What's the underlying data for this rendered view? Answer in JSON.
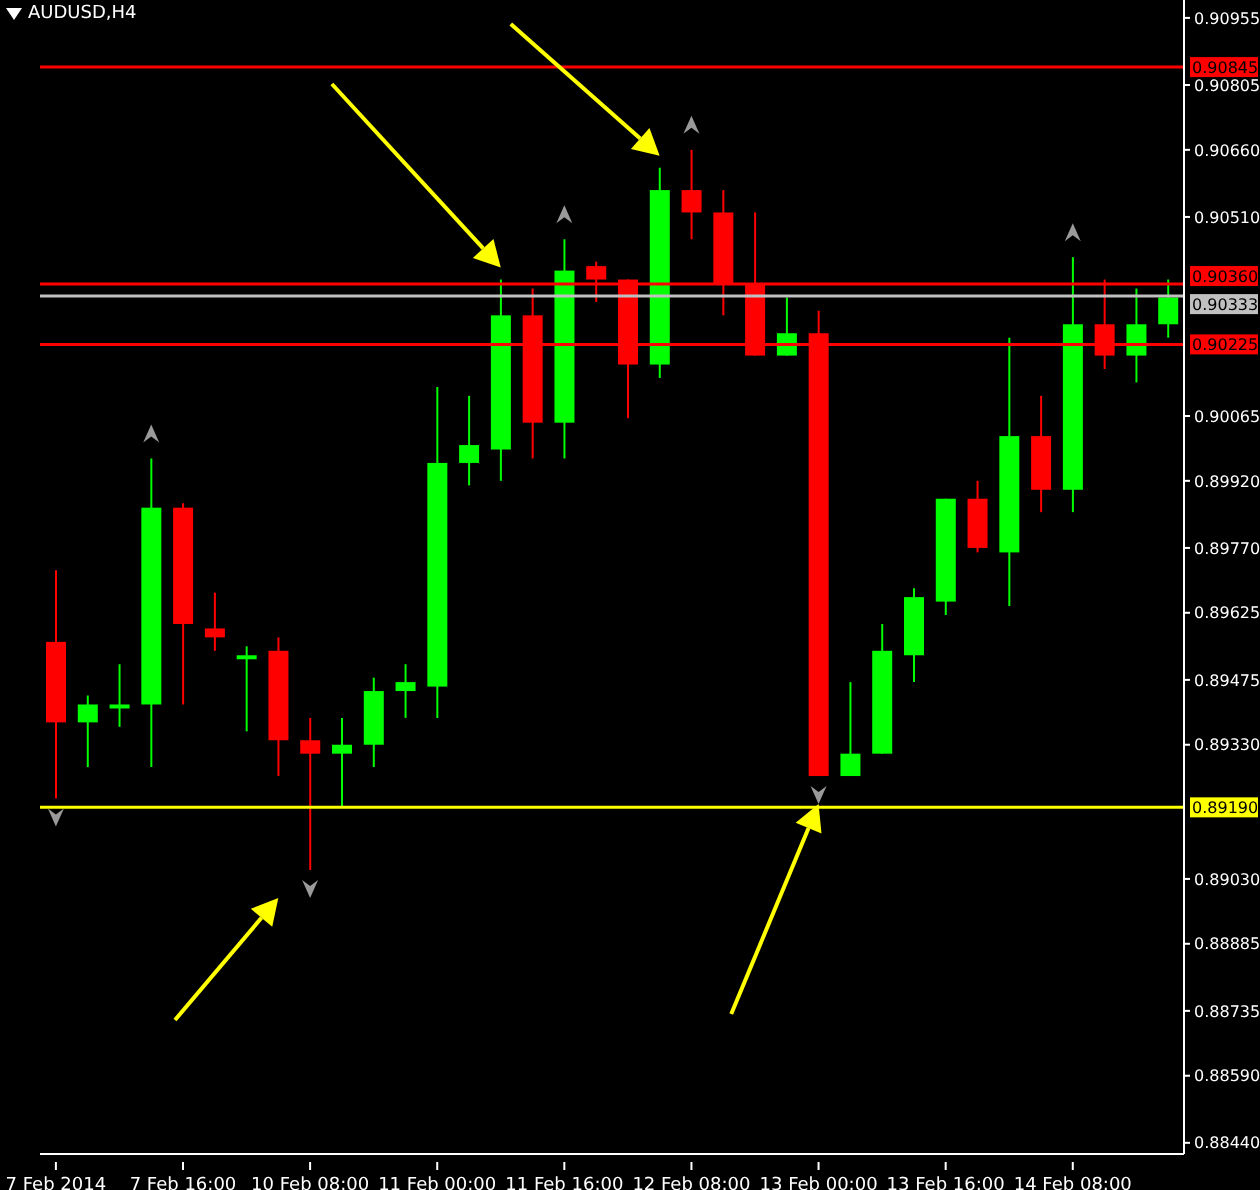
{
  "chart_data": {
    "type": "candlestick",
    "title": "AUDUSD,H4",
    "categories": [
      "7 Feb 2014",
      null,
      null,
      null,
      "7 Feb 16:00",
      null,
      null,
      null,
      "10 Feb 08:00",
      null,
      null,
      null,
      "11 Feb 00:00",
      null,
      null,
      null,
      "11 Feb 16:00",
      null,
      null,
      null,
      "12 Feb 08:00",
      null,
      null,
      null,
      "13 Feb 00:00",
      null,
      null,
      null,
      "13 Feb 16:00",
      null,
      null,
      null,
      "14 Feb 08:00",
      null,
      null,
      null
    ],
    "ohlc": [
      [
        0.8956,
        0.8972,
        0.8921,
        0.8938
      ],
      [
        0.8938,
        0.8944,
        0.8928,
        0.8942
      ],
      [
        0.8942,
        0.8951,
        0.8937,
        0.8942
      ],
      [
        0.8942,
        0.8997,
        0.8928,
        0.8986
      ],
      [
        0.8986,
        0.8987,
        0.8942,
        0.896
      ],
      [
        0.8959,
        0.8967,
        0.8954,
        0.8957
      ],
      [
        0.8953,
        0.8955,
        0.8936,
        0.8953
      ],
      [
        0.8954,
        0.8957,
        0.8926,
        0.8934
      ],
      [
        0.8934,
        0.8939,
        0.8905,
        0.8931
      ],
      [
        0.8931,
        0.8939,
        0.8919,
        0.8933
      ],
      [
        0.8933,
        0.8948,
        0.8928,
        0.8945
      ],
      [
        0.8945,
        0.8951,
        0.8939,
        0.8947
      ],
      [
        0.8946,
        0.9013,
        0.8939,
        0.8996
      ],
      [
        0.8996,
        0.9011,
        0.8991,
        0.9
      ],
      [
        0.8999,
        0.9037,
        0.8992,
        0.9029
      ],
      [
        0.9029,
        0.9035,
        0.8997,
        0.9005
      ],
      [
        0.9005,
        0.9046,
        0.8997,
        0.9039
      ],
      [
        0.904,
        0.9041,
        0.9032,
        0.9037
      ],
      [
        0.9037,
        0.9037,
        0.9006,
        0.9018
      ],
      [
        0.9018,
        0.9062,
        0.9015,
        0.9057
      ],
      [
        0.9057,
        0.9066,
        0.9046,
        0.9052
      ],
      [
        0.9052,
        0.9057,
        0.9029,
        0.9036
      ],
      [
        0.9036,
        0.9052,
        0.902,
        0.902
      ],
      [
        0.902,
        0.9033,
        0.902,
        0.9025
      ],
      [
        0.9025,
        0.903,
        0.8926,
        0.8926
      ],
      [
        0.8926,
        0.8947,
        0.8926,
        0.8931
      ],
      [
        0.8931,
        0.896,
        0.8931,
        0.8954
      ],
      [
        0.8953,
        0.8968,
        0.8947,
        0.8966
      ],
      [
        0.8965,
        0.8988,
        0.8962,
        0.8988
      ],
      [
        0.8988,
        0.8992,
        0.8976,
        0.8977
      ],
      [
        0.8976,
        0.9024,
        0.8964,
        0.9002
      ],
      [
        0.9002,
        0.9011,
        0.8985,
        0.899
      ],
      [
        0.899,
        0.9042,
        0.8985,
        0.9027
      ],
      [
        0.9027,
        0.9037,
        0.9017,
        0.902
      ],
      [
        0.902,
        0.9035,
        0.9014,
        0.9027
      ],
      [
        0.9027,
        0.9037,
        0.9024,
        0.9033
      ]
    ],
    "colors": [
      "#ff0000",
      "#00ff00",
      "#00ff00",
      "#00ff00",
      "#ff0000",
      "#ff0000",
      "#00ff00",
      "#ff0000",
      "#ff0000",
      "#00ff00",
      "#00ff00",
      "#00ff00",
      "#00ff00",
      "#00ff00",
      "#00ff00",
      "#ff0000",
      "#00ff00",
      "#ff0000",
      "#ff0000",
      "#00ff00",
      "#ff0000",
      "#ff0000",
      "#ff0000",
      "#00ff00",
      "#ff0000",
      "#00ff00",
      "#00ff00",
      "#00ff00",
      "#00ff00",
      "#ff0000",
      "#00ff00",
      "#ff0000",
      "#00ff00",
      "#ff0000",
      "#00ff00",
      "#00ff00"
    ],
    "ylim": [
      0.88415,
      0.90995
    ],
    "yticks": [
      0.90955,
      0.90805,
      {
        "value": 0.9066,
        "label": "0.90660"
      },
      {
        "value": 0.9051,
        "label": "0.90510"
      },
      0.90065,
      {
        "value": 0.8992,
        "label": "0.89920"
      },
      {
        "value": 0.8977,
        "label": "0.89770"
      },
      0.89625,
      0.89475,
      {
        "value": 0.8933,
        "label": "0.89330"
      },
      {
        "value": 0.8903,
        "label": "0.89030"
      },
      0.88885,
      0.88735,
      {
        "value": 0.8859,
        "label": "0.88590"
      },
      {
        "value": 0.8844,
        "label": "0.88440"
      }
    ],
    "ref_lines": [
      {
        "axis": "y",
        "value": 0.90845,
        "label": "0.90845",
        "color": "#ff0000"
      },
      {
        "axis": "y",
        "value": 0.9036,
        "label": "0.90360",
        "color": "#ff0000"
      },
      {
        "axis": "y",
        "value": 0.90333,
        "label": "0.90333",
        "color": "#c0c0c0"
      },
      {
        "axis": "y",
        "value": 0.90225,
        "label": "0.90225",
        "color": "#ff0000"
      },
      {
        "axis": "y",
        "value": 0.8919,
        "label": "0.89190",
        "color": "#ffff00"
      }
    ]
  }
}
